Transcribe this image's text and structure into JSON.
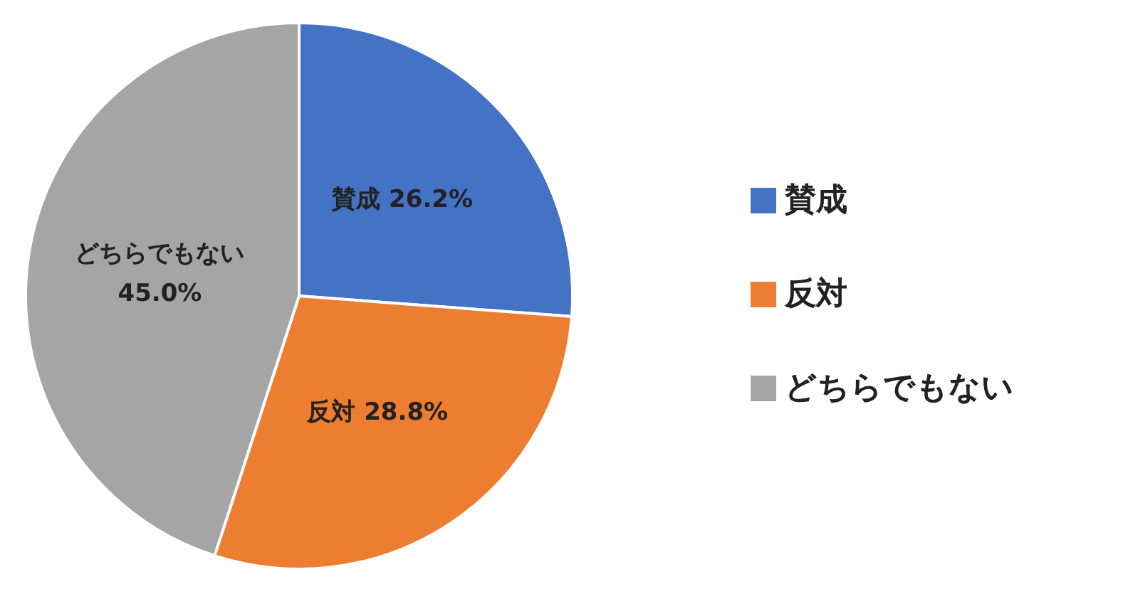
{
  "chart_data": {
    "type": "pie",
    "categories": [
      "賛成",
      "反対",
      "どちらでもない"
    ],
    "values": [
      26.2,
      28.8,
      45.0
    ],
    "colors": [
      "#4472c4",
      "#ed7d31",
      "#a5a5a5"
    ],
    "value_labels": [
      "26.2%",
      "28.8%",
      "45.0%"
    ],
    "legend": "right"
  }
}
